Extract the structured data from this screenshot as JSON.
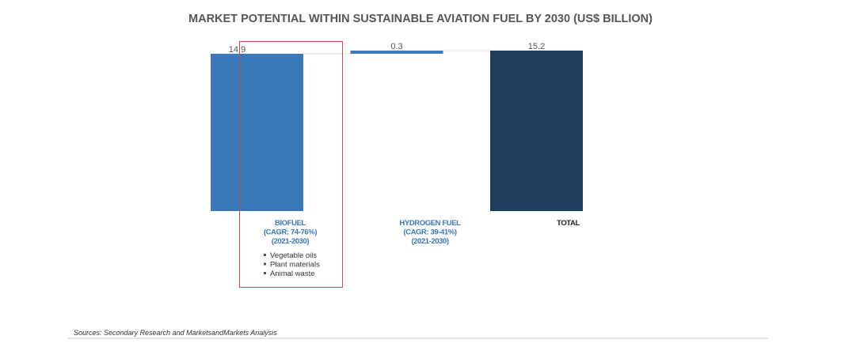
{
  "chart_data": {
    "type": "bar",
    "subtype": "waterfall",
    "title": "MARKET POTENTIAL WITHIN SUSTAINABLE AVIATION FUEL BY 2030 (US$ BILLION)",
    "xlabel": "",
    "ylabel": "",
    "ylim": [
      0,
      15.2
    ],
    "grid": false,
    "legend": "none",
    "categories": [
      {
        "name": "BIOFUEL",
        "lines": [
          "BIOFUEL",
          "(CAGR: 74-76%)",
          "(2021-2030)"
        ],
        "cagr": "74-76%",
        "period": "2021-2030"
      },
      {
        "name": "HYDROGEN FUEL",
        "lines": [
          "HYDROGEN FUEL",
          "(CAGR: 39-41%)",
          "(2021-2030)"
        ],
        "cagr": "39-41%",
        "period": "2021-2030"
      },
      {
        "name": "TOTAL",
        "lines": [
          "TOTAL"
        ]
      }
    ],
    "values": [
      14.9,
      0.3,
      15.2
    ],
    "value_labels": [
      "14.9",
      "0.3",
      "15.2"
    ],
    "bar_kinds": [
      "increment",
      "increment",
      "total"
    ],
    "colors": {
      "increment": "#3a78b9",
      "total": "#1f3e5e",
      "highlight_box": "#c0504d",
      "category_text": "#3a78b9",
      "total_text": "#222222"
    },
    "highlighted_category": "BIOFUEL",
    "annotation_bullets": [
      "Vegetable oils",
      "Plant materials",
      "Animal waste"
    ]
  },
  "footer": {
    "source": "Sources: Secondary Research and MarketsandMarkets Analysis"
  }
}
